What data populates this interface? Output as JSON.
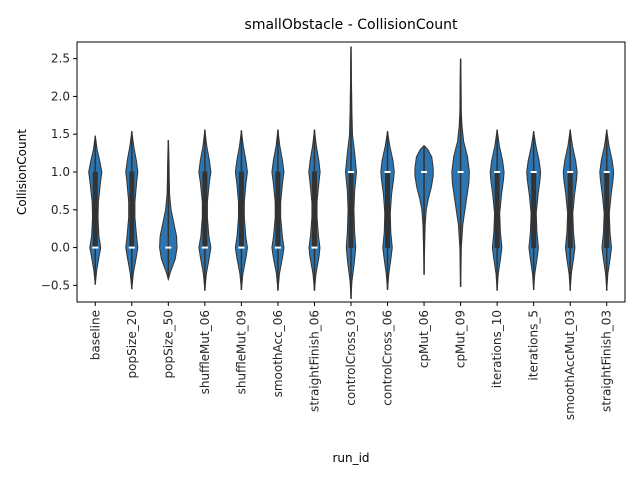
{
  "chart_data": {
    "type": "violin",
    "title": "smallObstacle - CollisionCount",
    "xlabel": "run_id",
    "ylabel": "CollisionCount",
    "ylim": [
      -0.72,
      2.72
    ],
    "yticks": [
      -0.5,
      0.0,
      0.5,
      1.0,
      1.5,
      2.0,
      2.5
    ],
    "ytick_labels": [
      "−0.5",
      "0.0",
      "0.5",
      "1.0",
      "1.5",
      "2.0",
      "2.5"
    ],
    "grid": false,
    "color": "#2c75b1",
    "edge_color": "#333333",
    "median_color": "#ffffff",
    "categories": [
      "baseline",
      "popSize_20",
      "popSize_50",
      "shuffleMut_06",
      "shuffleMut_09",
      "smoothAcc_06",
      "straightFinish_06",
      "controlCross_03",
      "controlCross_06",
      "cpMut_06",
      "cpMut_09",
      "iterations_10",
      "iterations_5",
      "smoothAccMut_03",
      "straightFinish_03"
    ],
    "violins": [
      {
        "min": -0.49,
        "max": 1.48,
        "q1": 0.0,
        "median": 0.0,
        "q3": 1.0,
        "half_widths": [
          [
            -0.49,
            0.0
          ],
          [
            -0.3,
            0.08
          ],
          [
            -0.1,
            0.22
          ],
          [
            0.0,
            0.3
          ],
          [
            0.15,
            0.2
          ],
          [
            0.4,
            0.15
          ],
          [
            0.6,
            0.17
          ],
          [
            0.85,
            0.28
          ],
          [
            1.0,
            0.36
          ],
          [
            1.15,
            0.24
          ],
          [
            1.3,
            0.1
          ],
          [
            1.48,
            0.0
          ]
        ]
      },
      {
        "min": -0.55,
        "max": 1.54,
        "q1": 0.0,
        "median": 0.0,
        "q3": 1.0,
        "half_widths": [
          [
            -0.55,
            0.0
          ],
          [
            -0.35,
            0.08
          ],
          [
            -0.12,
            0.25
          ],
          [
            0.0,
            0.33
          ],
          [
            0.15,
            0.26
          ],
          [
            0.4,
            0.17
          ],
          [
            0.6,
            0.17
          ],
          [
            0.85,
            0.26
          ],
          [
            1.0,
            0.33
          ],
          [
            1.15,
            0.25
          ],
          [
            1.35,
            0.1
          ],
          [
            1.54,
            0.0
          ]
        ]
      },
      {
        "min": -0.42,
        "max": 1.42,
        "q1": 0.0,
        "median": 0.0,
        "q3": 0.0,
        "half_widths": [
          [
            -0.42,
            0.0
          ],
          [
            -0.32,
            0.12
          ],
          [
            -0.15,
            0.38
          ],
          [
            0.0,
            0.48
          ],
          [
            0.15,
            0.45
          ],
          [
            0.3,
            0.32
          ],
          [
            0.5,
            0.15
          ],
          [
            0.7,
            0.07
          ],
          [
            0.9,
            0.05
          ],
          [
            1.1,
            0.04
          ],
          [
            1.3,
            0.02
          ],
          [
            1.42,
            0.0
          ]
        ]
      },
      {
        "min": -0.57,
        "max": 1.56,
        "q1": 0.0,
        "median": 0.0,
        "q3": 1.0,
        "half_widths": [
          [
            -0.57,
            0.0
          ],
          [
            -0.35,
            0.08
          ],
          [
            -0.12,
            0.25
          ],
          [
            0.0,
            0.33
          ],
          [
            0.15,
            0.22
          ],
          [
            0.4,
            0.14
          ],
          [
            0.6,
            0.14
          ],
          [
            0.85,
            0.24
          ],
          [
            1.0,
            0.33
          ],
          [
            1.15,
            0.25
          ],
          [
            1.35,
            0.1
          ],
          [
            1.56,
            0.0
          ]
        ]
      },
      {
        "min": -0.56,
        "max": 1.55,
        "q1": 0.0,
        "median": 0.0,
        "q3": 1.0,
        "half_widths": [
          [
            -0.56,
            0.0
          ],
          [
            -0.35,
            0.08
          ],
          [
            -0.12,
            0.26
          ],
          [
            0.0,
            0.33
          ],
          [
            0.15,
            0.24
          ],
          [
            0.4,
            0.16
          ],
          [
            0.6,
            0.16
          ],
          [
            0.85,
            0.25
          ],
          [
            1.0,
            0.33
          ],
          [
            1.15,
            0.25
          ],
          [
            1.35,
            0.1
          ],
          [
            1.55,
            0.0
          ]
        ]
      },
      {
        "min": -0.57,
        "max": 1.56,
        "q1": 0.0,
        "median": 0.0,
        "q3": 1.0,
        "half_widths": [
          [
            -0.57,
            0.0
          ],
          [
            -0.35,
            0.08
          ],
          [
            -0.12,
            0.26
          ],
          [
            0.0,
            0.33
          ],
          [
            0.15,
            0.24
          ],
          [
            0.4,
            0.15
          ],
          [
            0.6,
            0.15
          ],
          [
            0.85,
            0.25
          ],
          [
            1.0,
            0.33
          ],
          [
            1.15,
            0.25
          ],
          [
            1.35,
            0.1
          ],
          [
            1.56,
            0.0
          ]
        ]
      },
      {
        "min": -0.57,
        "max": 1.56,
        "q1": 0.0,
        "median": 0.0,
        "q3": 1.0,
        "half_widths": [
          [
            -0.57,
            0.0
          ],
          [
            -0.35,
            0.08
          ],
          [
            -0.12,
            0.25
          ],
          [
            0.0,
            0.3
          ],
          [
            0.15,
            0.22
          ],
          [
            0.4,
            0.14
          ],
          [
            0.6,
            0.14
          ],
          [
            0.85,
            0.24
          ],
          [
            1.0,
            0.31
          ],
          [
            1.15,
            0.24
          ],
          [
            1.35,
            0.1
          ],
          [
            1.56,
            0.0
          ]
        ]
      },
      {
        "min": -0.68,
        "max": 2.66,
        "q1": 0.0,
        "median": 1.0,
        "q3": 1.0,
        "half_widths": [
          [
            -0.68,
            0.0
          ],
          [
            -0.45,
            0.05
          ],
          [
            -0.2,
            0.18
          ],
          [
            0.0,
            0.26
          ],
          [
            0.2,
            0.2
          ],
          [
            0.5,
            0.16
          ],
          [
            0.75,
            0.2
          ],
          [
            1.0,
            0.3
          ],
          [
            1.25,
            0.2
          ],
          [
            1.5,
            0.08
          ],
          [
            1.8,
            0.05
          ],
          [
            2.0,
            0.04
          ],
          [
            2.2,
            0.025
          ],
          [
            2.45,
            0.015
          ],
          [
            2.66,
            0.0
          ]
        ]
      },
      {
        "min": -0.56,
        "max": 1.54,
        "q1": 0.0,
        "median": 1.0,
        "q3": 1.0,
        "half_widths": [
          [
            -0.56,
            0.0
          ],
          [
            -0.35,
            0.07
          ],
          [
            -0.12,
            0.2
          ],
          [
            0.0,
            0.26
          ],
          [
            0.2,
            0.18
          ],
          [
            0.45,
            0.15
          ],
          [
            0.7,
            0.22
          ],
          [
            0.9,
            0.33
          ],
          [
            1.0,
            0.37
          ],
          [
            1.15,
            0.3
          ],
          [
            1.35,
            0.12
          ],
          [
            1.54,
            0.0
          ]
        ]
      },
      {
        "min": -0.36,
        "max": 1.35,
        "q1": 1.0,
        "median": 1.0,
        "q3": 1.0,
        "half_widths": [
          [
            -0.36,
            0.0
          ],
          [
            -0.1,
            0.02
          ],
          [
            0.1,
            0.04
          ],
          [
            0.3,
            0.06
          ],
          [
            0.5,
            0.12
          ],
          [
            0.65,
            0.24
          ],
          [
            0.8,
            0.4
          ],
          [
            0.95,
            0.5
          ],
          [
            1.05,
            0.5
          ],
          [
            1.2,
            0.42
          ],
          [
            1.3,
            0.2
          ],
          [
            1.35,
            0.0
          ]
        ]
      },
      {
        "min": -0.52,
        "max": 2.5,
        "q1": 1.0,
        "median": 1.0,
        "q3": 1.0,
        "half_widths": [
          [
            -0.52,
            0.0
          ],
          [
            -0.3,
            0.02
          ],
          [
            0.0,
            0.04
          ],
          [
            0.3,
            0.12
          ],
          [
            0.6,
            0.3
          ],
          [
            0.85,
            0.45
          ],
          [
            1.0,
            0.48
          ],
          [
            1.2,
            0.38
          ],
          [
            1.4,
            0.17
          ],
          [
            1.6,
            0.08
          ],
          [
            1.8,
            0.04
          ],
          [
            2.1,
            0.03
          ],
          [
            2.3,
            0.02
          ],
          [
            2.5,
            0.0
          ]
        ]
      },
      {
        "min": -0.57,
        "max": 1.56,
        "q1": 0.0,
        "median": 1.0,
        "q3": 1.0,
        "half_widths": [
          [
            -0.57,
            0.0
          ],
          [
            -0.35,
            0.06
          ],
          [
            -0.12,
            0.2
          ],
          [
            0.0,
            0.26
          ],
          [
            0.2,
            0.18
          ],
          [
            0.45,
            0.14
          ],
          [
            0.7,
            0.24
          ],
          [
            0.9,
            0.35
          ],
          [
            1.0,
            0.38
          ],
          [
            1.15,
            0.3
          ],
          [
            1.35,
            0.12
          ],
          [
            1.56,
            0.0
          ]
        ]
      },
      {
        "min": -0.56,
        "max": 1.54,
        "q1": 0.0,
        "median": 1.0,
        "q3": 1.0,
        "half_widths": [
          [
            -0.56,
            0.0
          ],
          [
            -0.35,
            0.06
          ],
          [
            -0.12,
            0.2
          ],
          [
            0.0,
            0.26
          ],
          [
            0.2,
            0.18
          ],
          [
            0.45,
            0.14
          ],
          [
            0.7,
            0.24
          ],
          [
            0.9,
            0.35
          ],
          [
            1.0,
            0.38
          ],
          [
            1.15,
            0.3
          ],
          [
            1.35,
            0.12
          ],
          [
            1.54,
            0.0
          ]
        ]
      },
      {
        "min": -0.57,
        "max": 1.56,
        "q1": 0.0,
        "median": 1.0,
        "q3": 1.0,
        "half_widths": [
          [
            -0.57,
            0.0
          ],
          [
            -0.35,
            0.06
          ],
          [
            -0.12,
            0.2
          ],
          [
            0.0,
            0.26
          ],
          [
            0.2,
            0.18
          ],
          [
            0.45,
            0.14
          ],
          [
            0.7,
            0.24
          ],
          [
            0.9,
            0.35
          ],
          [
            1.0,
            0.38
          ],
          [
            1.15,
            0.3
          ],
          [
            1.35,
            0.12
          ],
          [
            1.56,
            0.0
          ]
        ]
      },
      {
        "min": -0.57,
        "max": 1.56,
        "q1": 0.0,
        "median": 1.0,
        "q3": 1.0,
        "half_widths": [
          [
            -0.57,
            0.0
          ],
          [
            -0.35,
            0.06
          ],
          [
            -0.12,
            0.2
          ],
          [
            0.0,
            0.26
          ],
          [
            0.2,
            0.18
          ],
          [
            0.45,
            0.14
          ],
          [
            0.7,
            0.24
          ],
          [
            0.9,
            0.35
          ],
          [
            1.0,
            0.38
          ],
          [
            1.15,
            0.3
          ],
          [
            1.35,
            0.12
          ],
          [
            1.56,
            0.0
          ]
        ]
      }
    ]
  }
}
